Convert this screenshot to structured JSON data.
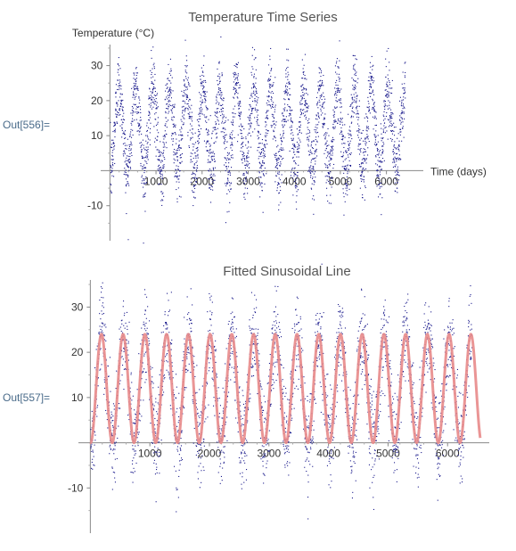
{
  "cells": [
    {
      "label": "Out[556]="
    },
    {
      "label": "Out[557]="
    }
  ],
  "chart_data": [
    {
      "type": "scatter",
      "title": "Temperature Time Series",
      "xlabel": "Time (days)",
      "ylabel": "Temperature (°C)",
      "xlim": [
        -200,
        6800
      ],
      "ylim": [
        -20,
        36
      ],
      "xticks": [
        1000,
        2000,
        3000,
        4000,
        5000,
        6000
      ],
      "yticks": [
        -10,
        10,
        20,
        30
      ],
      "series": [
        {
          "color": "#1a1a8c",
          "marker": "dot",
          "model": {
            "mean": 12,
            "amplitude": 12,
            "period_days": 365,
            "noise": 5
          },
          "x": [
            0,
            365,
            730,
            1095,
            1460,
            1825,
            2190,
            2555,
            2920,
            3285,
            3650,
            4015,
            4380,
            4745,
            5110,
            5475,
            5840,
            6205,
            6400
          ],
          "y": [
            12,
            12,
            12,
            12,
            12,
            12,
            12,
            12,
            12,
            12,
            12,
            12,
            12,
            12,
            12,
            12,
            12,
            12,
            12
          ]
        }
      ],
      "grid": false,
      "legend": "none"
    },
    {
      "type": "scatter",
      "title": "Fitted Sinusoidal Line",
      "xlabel": "",
      "ylabel": "",
      "xlim": [
        -200,
        6700
      ],
      "ylim": [
        -20,
        36
      ],
      "xticks": [
        1000,
        2000,
        3000,
        4000,
        5000,
        6000
      ],
      "yticks": [
        -10,
        10,
        20,
        30
      ],
      "series": [
        {
          "color": "#1a1a8c",
          "marker": "dot",
          "model": {
            "mean": 12,
            "amplitude": 12,
            "period_days": 365,
            "noise": 5
          }
        },
        {
          "color": "#e88a8a",
          "marker": "line",
          "model": {
            "mean": 12,
            "amplitude": 12,
            "period_days": 365
          }
        }
      ],
      "grid": false,
      "legend": "none"
    }
  ]
}
